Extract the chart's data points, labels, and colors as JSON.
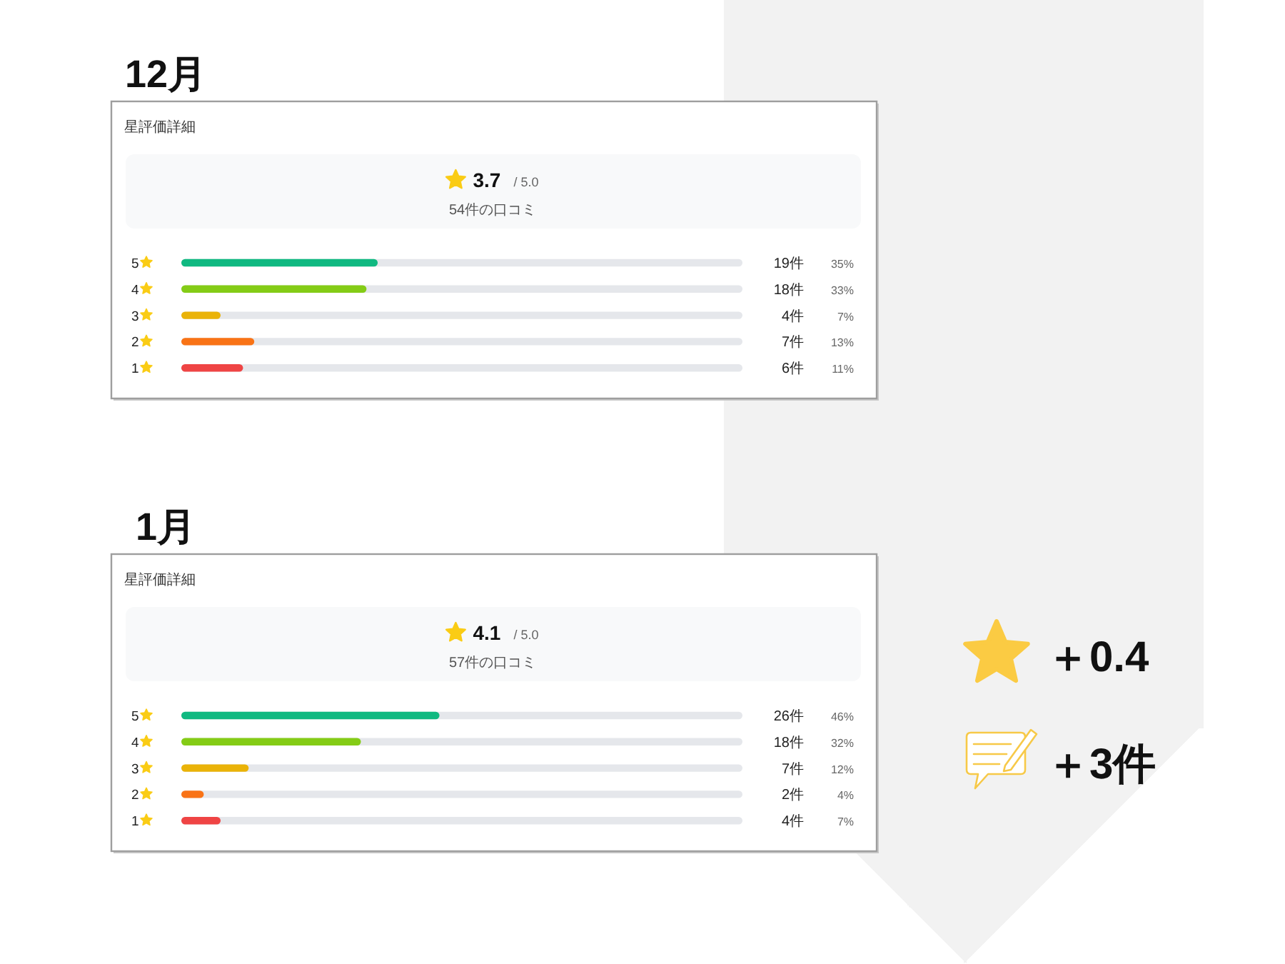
{
  "chart_data": [
    {
      "type": "bar",
      "orientation": "horizontal",
      "title": "12月",
      "subtitle": "星評価詳細",
      "categories": [
        "5",
        "4",
        "3",
        "2",
        "1"
      ],
      "values": [
        35,
        33,
        7,
        13,
        11
      ],
      "colors": [
        "#10b981",
        "#84cc16",
        "#eab308",
        "#f97316",
        "#ef4444"
      ],
      "xlim": [
        0,
        100
      ],
      "tick_labels": "y",
      "value_labels": [
        "35%",
        "33%",
        "7%",
        "13%",
        "11%"
      ],
      "annotations": [
        "3.7",
        "/ 5.0",
        "54件の口コミ",
        "19件",
        "18件",
        "4件",
        "7件",
        "6件"
      ]
    },
    {
      "type": "bar",
      "orientation": "horizontal",
      "title": "1月",
      "subtitle": "星評価詳細",
      "categories": [
        "5",
        "4",
        "3",
        "2",
        "1"
      ],
      "values": [
        46,
        32,
        12,
        4,
        7
      ],
      "colors": [
        "#10b981",
        "#84cc16",
        "#eab308",
        "#f97316",
        "#ef4444"
      ],
      "xlim": [
        0,
        100
      ],
      "tick_labels": "y",
      "value_labels": [
        "46%",
        "32%",
        "12%",
        "4%",
        "7%"
      ],
      "annotations": [
        "4.1",
        "/ 5.0",
        "57件の口コミ",
        "26件",
        "18件",
        "7件",
        "2件",
        "4件"
      ]
    },
    {
      "type": "other",
      "annotations": [
        "＋0.4",
        "＋3件"
      ]
    }
  ]
}
